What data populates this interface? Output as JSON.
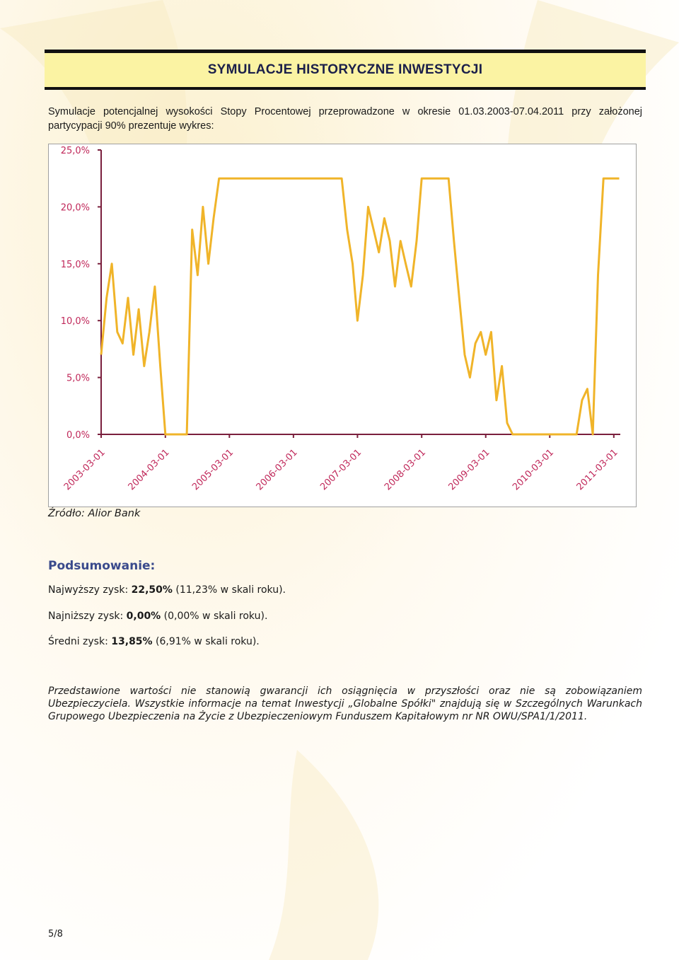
{
  "header": {
    "title": "SYMULACJE HISTORYCZNE INWESTYCJI"
  },
  "intro": "Symulacje potencjalnej wysokości Stopy Procentowej przeprowadzone w okresie 01.03.2003-07.04.2011 przy założonej partycypacji 90% prezentuje wykres:",
  "chart_data": {
    "type": "line",
    "color": "#f0b429",
    "x": [
      "2003-03-01",
      "2003-04-01",
      "2003-05-01",
      "2003-06-01",
      "2003-07-01",
      "2003-08-01",
      "2003-09-01",
      "2003-10-01",
      "2003-11-01",
      "2003-12-01",
      "2004-01-01",
      "2004-02-01",
      "2004-03-01",
      "2004-04-01",
      "2004-05-01",
      "2004-06-01",
      "2004-07-01",
      "2004-08-01",
      "2004-09-01",
      "2004-10-01",
      "2004-11-01",
      "2004-12-01",
      "2005-01-01",
      "2005-02-01",
      "2005-03-01",
      "2005-04-01",
      "2005-05-01",
      "2005-06-01",
      "2005-07-01",
      "2005-08-01",
      "2005-09-01",
      "2005-10-01",
      "2005-11-01",
      "2005-12-01",
      "2006-01-01",
      "2006-02-01",
      "2006-03-01",
      "2006-04-01",
      "2006-05-01",
      "2006-06-01",
      "2006-07-01",
      "2006-08-01",
      "2006-09-01",
      "2006-10-01",
      "2006-11-01",
      "2006-12-01",
      "2007-01-01",
      "2007-02-01",
      "2007-03-01",
      "2007-04-01",
      "2007-05-01",
      "2007-06-01",
      "2007-07-01",
      "2007-08-01",
      "2007-09-01",
      "2007-10-01",
      "2007-11-01",
      "2007-12-01",
      "2008-01-01",
      "2008-02-01",
      "2008-03-01",
      "2008-04-01",
      "2008-05-01",
      "2008-06-01",
      "2008-07-01",
      "2008-08-01",
      "2008-09-01",
      "2008-10-01",
      "2008-11-01",
      "2008-12-01",
      "2009-01-01",
      "2009-02-01",
      "2009-03-01",
      "2009-04-01",
      "2009-05-01",
      "2009-06-01",
      "2009-07-01",
      "2009-08-01",
      "2009-09-01",
      "2009-10-01",
      "2009-11-01",
      "2009-12-01",
      "2010-01-01",
      "2010-02-01",
      "2010-03-01",
      "2010-04-01",
      "2010-05-01",
      "2010-06-01",
      "2010-07-01",
      "2010-08-01",
      "2010-09-01",
      "2010-10-01",
      "2010-11-01",
      "2010-12-01",
      "2011-01-01",
      "2011-02-01",
      "2011-03-01",
      "2011-04-01"
    ],
    "values": [
      7,
      12,
      15,
      9,
      8,
      12,
      7,
      11,
      6,
      9,
      13,
      6,
      0,
      0,
      0,
      0,
      0,
      18,
      14,
      20,
      15,
      19,
      22.5,
      22.5,
      22.5,
      22.5,
      22.5,
      22.5,
      22.5,
      22.5,
      22.5,
      22.5,
      22.5,
      22.5,
      22.5,
      22.5,
      22.5,
      22.5,
      22.5,
      22.5,
      22.5,
      22.5,
      22.5,
      22.5,
      22.5,
      22.5,
      18,
      15,
      10,
      14,
      20,
      18,
      16,
      19,
      17,
      13,
      17,
      15,
      13,
      17,
      22.5,
      22.5,
      22.5,
      22.5,
      22.5,
      22.5,
      17,
      12,
      7,
      5,
      8,
      9,
      7,
      9,
      3,
      6,
      1,
      0,
      0,
      0,
      0,
      0,
      0,
      0,
      0,
      0,
      0,
      0,
      0,
      0,
      3,
      4,
      0,
      14,
      22.5,
      22.5,
      22.5,
      22.5
    ],
    "xlim": [
      "2003-03-01",
      "2011-04-07"
    ],
    "xticks": [
      "2003-03-01",
      "2004-03-01",
      "2005-03-01",
      "2006-03-01",
      "2007-03-01",
      "2008-03-01",
      "2009-03-01",
      "2010-03-01",
      "2011-03-01"
    ],
    "ylim": [
      0,
      25
    ],
    "yticks": [
      {
        "value": 0,
        "label": "0,0%"
      },
      {
        "value": 5,
        "label": "5,0%"
      },
      {
        "value": 10,
        "label": "10,0%"
      },
      {
        "value": 15,
        "label": "15,0%"
      },
      {
        "value": 20,
        "label": "20,0%"
      },
      {
        "value": 25,
        "label": "25,0%"
      }
    ]
  },
  "source": "Źródło: Alior Bank",
  "summary": {
    "heading": "Podsumowanie:",
    "lines": [
      {
        "label": "Najwyższy zysk:",
        "value": "22,50%",
        "note": "(11,23% w skali roku)."
      },
      {
        "label": "Najniższy zysk:",
        "value": "0,00%",
        "note": "(0,00% w skali roku)."
      },
      {
        "label": "Średni zysk:",
        "value": "13,85%",
        "note": "(6,91% w skali roku)."
      }
    ]
  },
  "disclaimer": "Przedstawione wartości nie stanowią gwarancji ich osiągnięcia w przyszłości oraz nie są zobowiązaniem Ubezpieczyciela. Wszystkie informacje na temat Inwestycji „Globalne Spółki\" znajdują się w Szczególnych Warunkach Grupowego Ubezpieczenia na Życie z Ubezpieczeniowym Funduszem Kapitałowym nr NR OWU/SPA1/1/2011.",
  "page_number": "5/8"
}
